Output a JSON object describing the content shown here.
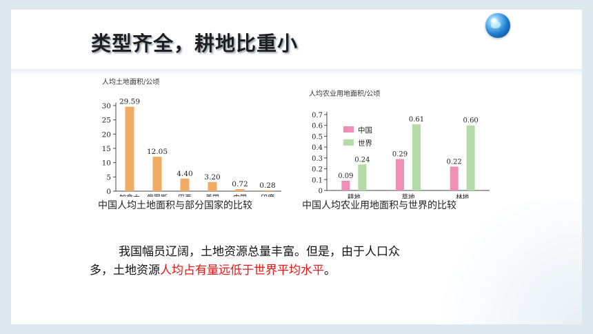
{
  "slide": {
    "title": "类型齐全，耕地比重小",
    "caption_left": "中国人均土地面积与部分国家的比较",
    "caption_right": "中国人均农业用地面积与世界的比较",
    "paragraph": {
      "part1": "我国幅员辽阔，土地资源总量丰富。但是，由于人口众多，土地资源",
      "highlight": "人均占有量远低于世界平均水平",
      "part2": "。"
    }
  },
  "colors": {
    "orange": "#f2ab62",
    "pink": "#ef8fb6",
    "green": "#b5dca8",
    "highlight_red": "#ee1111"
  },
  "chart_data": [
    {
      "type": "bar",
      "ylabel": "人均土地面积/公顷",
      "categories": [
        "加拿大",
        "俄罗斯",
        "巴西",
        "美国",
        "中国",
        "印度"
      ],
      "values": [
        29.59,
        12.05,
        4.4,
        3.2,
        0.72,
        0.28
      ],
      "value_labels": [
        "29.59",
        "12.05",
        "4.40",
        "3.20",
        "0.72",
        "0.28"
      ],
      "ylim": [
        0,
        30
      ],
      "yticks": [
        "0",
        "5",
        "10",
        "15",
        "20",
        "25",
        "30"
      ]
    },
    {
      "type": "bar",
      "ylabel": "人均农业用地面积/公顷",
      "categories": [
        "耕地",
        "草地",
        "林地"
      ],
      "series": [
        {
          "name": "中国",
          "values": [
            0.09,
            0.29,
            0.22
          ],
          "labels": [
            "0.09",
            "0.29",
            "0.22"
          ]
        },
        {
          "name": "世界",
          "values": [
            0.24,
            0.61,
            0.6
          ],
          "labels": [
            "0.24",
            "0.61",
            "0.60"
          ]
        }
      ],
      "ylim": [
        0,
        0.7
      ],
      "yticks": [
        "0",
        "0.1",
        "0.2",
        "0.3",
        "0.4",
        "0.5",
        "0.6",
        "0.7"
      ],
      "legend_position": "top-left"
    }
  ]
}
